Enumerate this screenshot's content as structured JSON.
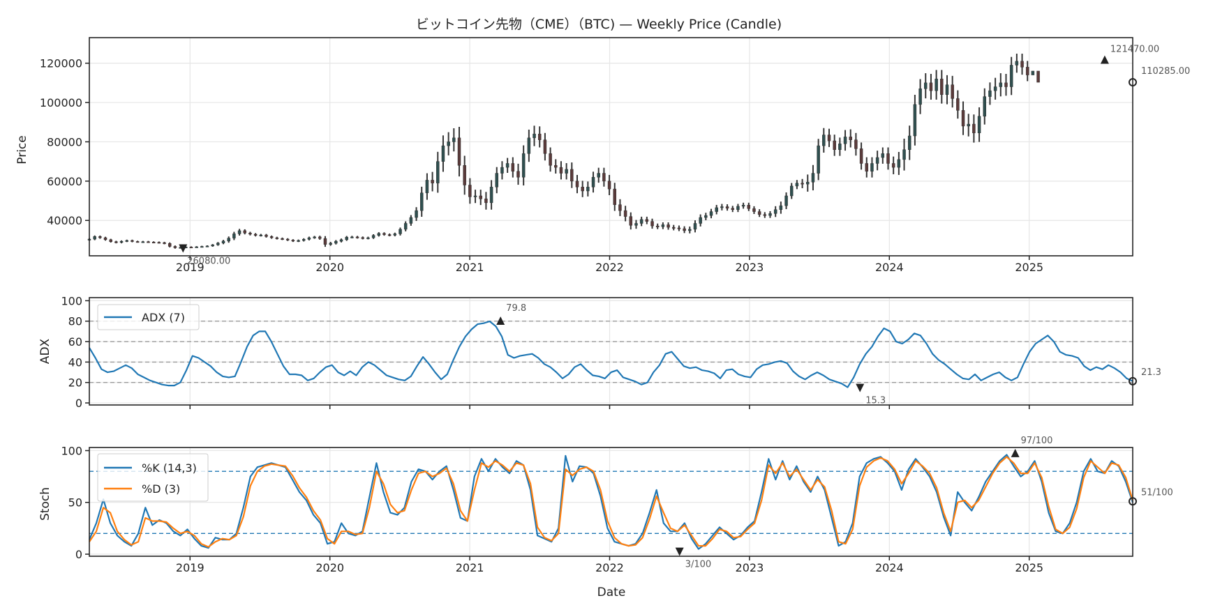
{
  "chart_data": [
    {
      "type": "candlestick",
      "title": "ビットコイン先物（CME）（BTC) — Weekly Price (Candle)",
      "xlabel": "",
      "ylabel": "Price",
      "ylim": [
        22000,
        133000
      ],
      "yticks": [
        40000,
        60000,
        80000,
        100000,
        120000
      ],
      "ytick_labels": [
        "40000",
        "60000",
        "80000",
        "100000",
        "120000"
      ],
      "xlim": [
        2018.28,
        2025.74
      ],
      "xticks": [
        2019,
        2020,
        2021,
        2022,
        2023,
        2024,
        2025
      ],
      "xtick_labels": [
        "2019",
        "2020",
        "2021",
        "2022",
        "2023",
        "2024",
        "2025"
      ],
      "grid": true,
      "up_color": "#2f4f4f",
      "down_color": "#5a3a3a",
      "wick_color": "#333333",
      "candle_interval_weeks": 2,
      "start": 2018.28,
      "close": [
        30500,
        31800,
        31200,
        30200,
        29200,
        28800,
        29400,
        29800,
        29300,
        29100,
        29200,
        29000,
        28900,
        28700,
        28300,
        26800,
        26100,
        26300,
        26500,
        26400,
        26600,
        26800,
        27000,
        27600,
        28500,
        29500,
        31000,
        33200,
        34800,
        33600,
        33000,
        32400,
        32600,
        31800,
        31200,
        30800,
        30500,
        30000,
        29500,
        29800,
        30400,
        31200,
        31600,
        30800,
        27800,
        28400,
        29400,
        30200,
        31500,
        31600,
        31300,
        30900,
        31200,
        32400,
        33400,
        32800,
        32500,
        33200,
        35500,
        38500,
        41500,
        45000,
        54000,
        60500,
        59000,
        70000,
        78000,
        80000,
        82000,
        68000,
        58000,
        52000,
        52500,
        51000,
        49000,
        57000,
        64000,
        67000,
        69000,
        65000,
        62000,
        74000,
        82000,
        84000,
        81000,
        74000,
        68000,
        67000,
        64000,
        66000,
        60000,
        57000,
        55000,
        57000,
        62000,
        64000,
        60000,
        56000,
        48000,
        45000,
        42000,
        37500,
        38500,
        40500,
        39500,
        37200,
        36800,
        37800,
        36500,
        36200,
        35800,
        34800,
        35500,
        38500,
        41500,
        42500,
        44500,
        46500,
        47000,
        46200,
        45500,
        47200,
        47800,
        46000,
        44500,
        43000,
        42500,
        43500,
        45500,
        47500,
        52500,
        57500,
        59000,
        58500,
        59500,
        64000,
        78000,
        83500,
        80500,
        76000,
        79000,
        82500,
        81000,
        76500,
        69000,
        65000,
        69000,
        72000,
        74000,
        69000,
        67000,
        71000,
        76000,
        83000,
        99000,
        107000,
        110000,
        106000,
        112000,
        104000,
        109000,
        102000,
        96000,
        88000,
        89000,
        84500,
        93000,
        103000,
        106000,
        108000,
        110000,
        108000,
        119000,
        121000,
        118000,
        114000,
        116000,
        110285
      ],
      "range": [
        1400,
        1600,
        1500,
        1400,
        1300,
        1300,
        1300,
        1200,
        1200,
        1100,
        1100,
        1100,
        1100,
        1100,
        1200,
        1500,
        1300,
        1000,
        900,
        900,
        900,
        900,
        900,
        1100,
        1400,
        1700,
        2400,
        2900,
        2600,
        2000,
        1800,
        1600,
        1600,
        1500,
        1500,
        1400,
        1400,
        1300,
        1300,
        1400,
        1500,
        1600,
        1500,
        1800,
        3500,
        2000,
        1800,
        1700,
        1700,
        1600,
        1500,
        1500,
        1500,
        1700,
        1800,
        1600,
        1600,
        1700,
        2500,
        3000,
        3500,
        5000,
        9000,
        10000,
        12000,
        14000,
        15000,
        14000,
        14000,
        16000,
        14000,
        10000,
        9000,
        9000,
        10000,
        10000,
        9000,
        9000,
        8000,
        9000,
        11000,
        12000,
        12000,
        12000,
        11000,
        10000,
        9000,
        9000,
        9000,
        9000,
        10000,
        9000,
        9000,
        8000,
        8000,
        8000,
        8000,
        9000,
        9000,
        8000,
        7000,
        6000,
        5000,
        4000,
        4000,
        4000,
        3500,
        3500,
        3500,
        3500,
        3500,
        3500,
        4000,
        4500,
        4500,
        4000,
        4000,
        4000,
        4000,
        3500,
        3500,
        3500,
        3500,
        3500,
        3500,
        3500,
        3500,
        3500,
        5000,
        6000,
        5000,
        4500,
        4500,
        6000,
        11000,
        12000,
        10000,
        10000,
        9000,
        9000,
        9000,
        10000,
        11000,
        10000,
        9000,
        9000,
        9000,
        10000,
        9000,
        9000,
        10000,
        11000,
        16000,
        15000,
        14000,
        14000,
        14000,
        13000,
        13000,
        13000,
        14000,
        13000,
        12000,
        13000,
        15000,
        14000,
        13000,
        12000,
        12000,
        13000,
        14000,
        13000,
        12000,
        11000,
        11000,
        9000
      ],
      "annotations": [
        {
          "label": "121470.00",
          "type": "max",
          "value": 121470,
          "x": 2025.54
        },
        {
          "label": "26080.00",
          "type": "min",
          "value": 26080,
          "x": 2018.95
        },
        {
          "label": "110285.00",
          "type": "last",
          "value": 110285,
          "x": 2025.74
        }
      ]
    },
    {
      "type": "line",
      "title": "",
      "ylabel": "ADX",
      "ylim": [
        -2,
        103
      ],
      "yticks": [
        0,
        20,
        40,
        60,
        80,
        100
      ],
      "ytick_labels": [
        "0",
        "20",
        "40",
        "60",
        "80",
        "100"
      ],
      "hlines": [
        20,
        40,
        60,
        80
      ],
      "grid": true,
      "legend_position": "upper-left",
      "series": [
        {
          "name": "ADX (7)",
          "color": "#1f77b4",
          "interval_weeks": 2,
          "values": [
            54,
            44,
            33,
            30,
            31,
            34,
            37,
            34,
            28,
            25,
            22,
            20,
            18,
            17,
            17,
            20,
            32,
            46,
            44,
            40,
            36,
            30,
            26,
            25,
            26,
            40,
            55,
            66,
            70,
            70,
            60,
            48,
            36,
            28,
            28,
            27,
            22,
            24,
            30,
            35,
            37,
            30,
            27,
            31,
            27,
            35,
            40,
            37,
            32,
            27,
            25,
            23,
            22,
            26,
            36,
            45,
            38,
            30,
            23,
            28,
            42,
            55,
            65,
            72,
            77,
            78,
            79.8,
            75,
            65,
            47,
            44,
            46,
            47,
            48,
            44,
            38,
            35,
            30,
            24,
            28,
            35,
            38,
            32,
            27,
            26,
            24,
            30,
            32,
            25,
            23,
            21,
            18,
            20,
            30,
            37,
            48,
            50,
            43,
            36,
            34,
            35,
            32,
            31,
            29,
            24,
            32,
            33,
            28,
            26,
            25,
            33,
            37,
            38,
            40,
            41,
            39,
            31,
            26,
            23,
            27,
            30,
            27,
            23,
            21,
            19,
            15.3,
            25,
            38,
            48,
            55,
            65,
            73,
            70,
            60,
            58,
            62,
            68,
            66,
            58,
            48,
            42,
            38,
            33,
            28,
            24,
            23,
            28,
            22,
            25,
            28,
            30,
            25,
            22,
            25,
            38,
            50,
            58,
            62,
            66,
            60,
            50,
            47,
            46,
            44,
            36,
            32,
            35,
            33,
            37,
            34,
            30,
            24,
            21.3
          ]
        }
      ],
      "annotations": [
        {
          "label": "79.8",
          "type": "max",
          "value": 79.8,
          "x": 2021.22
        },
        {
          "label": "15.3",
          "type": "min",
          "value": 15.3,
          "x": 2023.79
        },
        {
          "label": "21.3",
          "type": "last",
          "value": 21.3,
          "x": 2025.74
        }
      ]
    },
    {
      "type": "line",
      "title": "",
      "xlabel": "Date",
      "ylabel": "Stoch",
      "ylim": [
        -2,
        103
      ],
      "yticks": [
        0,
        50,
        100
      ],
      "ytick_labels": [
        "0",
        "50",
        "100"
      ],
      "hlines": [
        20,
        80
      ],
      "grid": true,
      "legend_position": "upper-left",
      "series": [
        {
          "name": "%K (14,3)",
          "color": "#1f77b4",
          "interval_weeks": 2,
          "values": [
            14,
            30,
            53,
            30,
            18,
            12,
            8,
            20,
            45,
            28,
            33,
            30,
            22,
            18,
            24,
            15,
            8,
            6,
            16,
            14,
            14,
            20,
            45,
            75,
            84,
            86,
            88,
            86,
            84,
            72,
            60,
            52,
            38,
            30,
            10,
            12,
            30,
            20,
            18,
            22,
            55,
            88,
            60,
            40,
            38,
            45,
            70,
            82,
            80,
            72,
            80,
            85,
            62,
            35,
            32,
            75,
            92,
            80,
            92,
            84,
            78,
            90,
            86,
            62,
            18,
            15,
            12,
            25,
            95,
            70,
            85,
            84,
            78,
            56,
            25,
            12,
            10,
            8,
            10,
            20,
            40,
            62,
            30,
            22,
            22,
            30,
            15,
            5,
            10,
            18,
            26,
            20,
            14,
            18,
            26,
            32,
            60,
            92,
            72,
            90,
            72,
            85,
            70,
            60,
            75,
            62,
            35,
            8,
            12,
            30,
            75,
            88,
            92,
            94,
            88,
            80,
            62,
            82,
            92,
            84,
            75,
            60,
            36,
            18,
            60,
            50,
            42,
            55,
            70,
            80,
            90,
            96,
            85,
            75,
            80,
            90,
            70,
            40,
            22,
            20,
            30,
            50,
            80,
            92,
            80,
            78,
            90,
            85,
            70,
            50
          ],
          "last": 51
        },
        {
          "name": "%D (3)",
          "color": "#ff7f0e",
          "interval_weeks": 2,
          "values": [
            12,
            22,
            45,
            40,
            22,
            14,
            9,
            12,
            35,
            32,
            32,
            31,
            25,
            20,
            22,
            18,
            10,
            7,
            12,
            15,
            14,
            18,
            36,
            66,
            80,
            85,
            87,
            86,
            85,
            76,
            64,
            55,
            42,
            33,
            15,
            10,
            22,
            22,
            19,
            20,
            45,
            80,
            68,
            48,
            40,
            42,
            62,
            78,
            80,
            75,
            78,
            83,
            68,
            42,
            32,
            62,
            88,
            84,
            90,
            86,
            80,
            88,
            86,
            68,
            26,
            16,
            13,
            20,
            82,
            76,
            82,
            84,
            80,
            62,
            32,
            16,
            10,
            8,
            9,
            16,
            34,
            56,
            40,
            25,
            22,
            28,
            18,
            8,
            8,
            15,
            24,
            22,
            16,
            17,
            24,
            30,
            52,
            86,
            78,
            88,
            75,
            82,
            72,
            62,
            72,
            65,
            42,
            12,
            10,
            24,
            66,
            84,
            90,
            93,
            90,
            82,
            68,
            78,
            90,
            85,
            78,
            64,
            40,
            22,
            50,
            52,
            45,
            52,
            65,
            78,
            88,
            94,
            88,
            78,
            78,
            88,
            74,
            46,
            24,
            20,
            26,
            44,
            74,
            90,
            84,
            78,
            88,
            86,
            74,
            52
          ],
          "last": 51
        }
      ],
      "annotations": [
        {
          "label": "97/100",
          "type": "max",
          "value": 97,
          "x": 2024.9
        },
        {
          "label": "3/100",
          "type": "min",
          "value": 3,
          "x": 2022.5
        },
        {
          "label": "51/100",
          "type": "last",
          "value": 51,
          "x": 2025.74
        }
      ]
    }
  ]
}
